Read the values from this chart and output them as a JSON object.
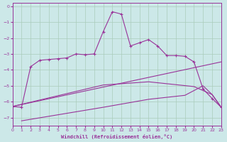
{
  "xlabel": "Windchill (Refroidissement éolien,°C)",
  "bg_color": "#cce8e8",
  "grid_color": "#aaccbb",
  "line_color": "#993399",
  "xlim": [
    0,
    23
  ],
  "ylim": [
    -7.5,
    0.2
  ],
  "yticks": [
    0,
    -1,
    -2,
    -3,
    -4,
    -5,
    -6,
    -7
  ],
  "xticks": [
    0,
    1,
    2,
    3,
    4,
    5,
    6,
    7,
    8,
    9,
    10,
    11,
    12,
    13,
    14,
    15,
    16,
    17,
    18,
    19,
    20,
    21,
    22,
    23
  ],
  "line_jagged_x": [
    0,
    1,
    2,
    3,
    4,
    5,
    6,
    7,
    8,
    9,
    10,
    11,
    12,
    13,
    14,
    15,
    16,
    17,
    18,
    19,
    20,
    21,
    22,
    23
  ],
  "line_jagged_y": [
    -6.3,
    -6.35,
    -3.8,
    -3.4,
    -3.35,
    -3.3,
    -3.25,
    -3.0,
    -3.05,
    -3.0,
    -1.6,
    -0.35,
    -0.5,
    -2.5,
    -2.3,
    -2.1,
    -2.5,
    -3.1,
    -3.1,
    -3.15,
    -3.5,
    -5.2,
    -5.8,
    -6.35
  ],
  "line1_x": [
    0,
    23
  ],
  "line1_y": [
    -6.3,
    -3.5
  ],
  "line2_x": [
    0,
    10,
    15,
    20,
    22,
    23
  ],
  "line2_y": [
    -6.3,
    -4.95,
    -4.75,
    -5.05,
    -5.55,
    -6.35
  ],
  "line3_x": [
    1,
    10,
    15,
    19,
    21,
    22,
    23
  ],
  "line3_y": [
    -7.2,
    -6.35,
    -5.85,
    -5.6,
    -5.0,
    -5.55,
    -6.35
  ]
}
